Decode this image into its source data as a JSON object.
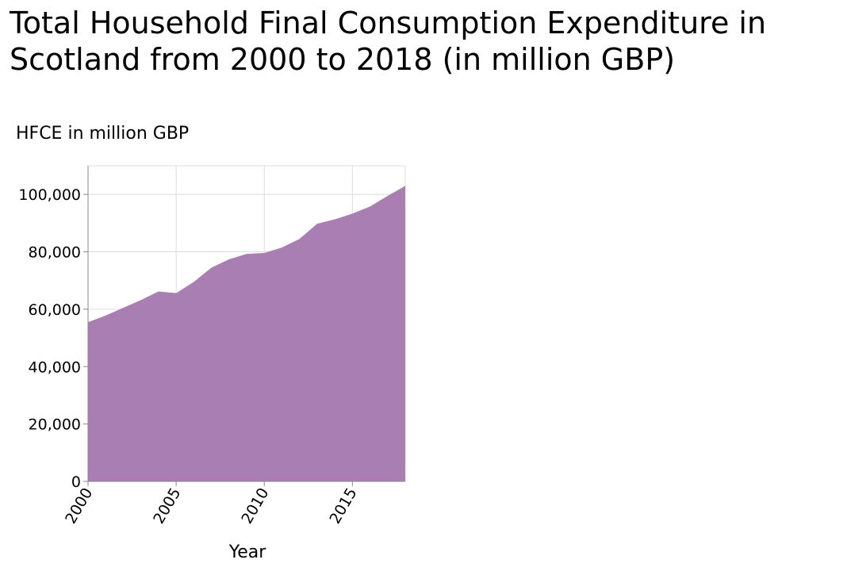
{
  "chart_data": {
    "type": "area",
    "title": "Total Household Final Consumption Expenditure in Scotland from 2000 to 2018 (in million GBP)",
    "ylabel": "HFCE in million GBP",
    "xlabel": "Year",
    "x": [
      2000,
      2001,
      2002,
      2003,
      2004,
      2005,
      2006,
      2007,
      2008,
      2009,
      2010,
      2011,
      2012,
      2013,
      2014,
      2015,
      2016,
      2017,
      2018
    ],
    "series": [
      {
        "values": [
          55500,
          57800,
          60500,
          63200,
          66200,
          65600,
          69500,
          74500,
          77400,
          79300,
          79600,
          81500,
          84500,
          89800,
          91300,
          93300,
          95800,
          99500,
          103000
        ]
      }
    ],
    "xlim": [
      2000,
      2018
    ],
    "ylim": [
      0,
      110000
    ],
    "x_ticks": [
      2000,
      2005,
      2010,
      2015
    ],
    "x_tick_labels": [
      "2000",
      "2005",
      "2010",
      "2015"
    ],
    "y_ticks": [
      0,
      20000,
      40000,
      60000,
      80000,
      100000
    ],
    "y_tick_labels": [
      "0",
      "20,000",
      "40,000",
      "60,000",
      "80,000",
      "100,000"
    ],
    "grid": true,
    "fill_color": "#a97fb3",
    "grid_color": "#dddddd",
    "axis_color": "#888888"
  }
}
